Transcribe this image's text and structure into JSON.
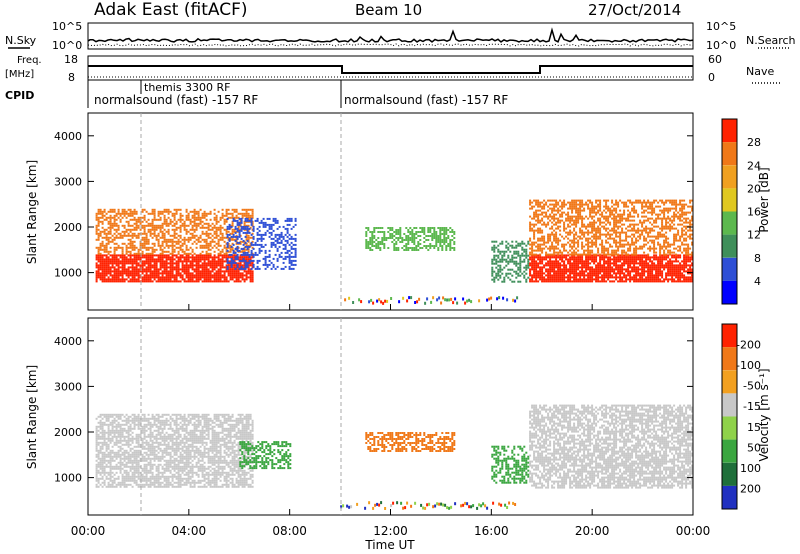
{
  "header": {
    "radar": "Adak East (fitACF)",
    "beam": "Beam 10",
    "date": "27/Oct/2014"
  },
  "side_labels": {
    "nsky": "N.Sky",
    "nsearch": "N.Search",
    "freq": "Freq.",
    "freq_unit": "[MHz]",
    "nave": "Nave",
    "cpid": "CPID"
  },
  "noise_axis": {
    "top": "10^5",
    "bottom": "10^0",
    "right_top": "10^5",
    "right_bottom": "10^0"
  },
  "freq_axis": {
    "top": "18",
    "bottom": "8",
    "right_top": "60",
    "right_bottom": "0"
  },
  "cpid_segments": [
    {
      "label": "normalsound (fast) -157 RF",
      "start_hour": 0,
      "end_hour": 10
    },
    {
      "label": "themis 3300 RF",
      "start_hour": 2,
      "end_hour": 2
    },
    {
      "label": "normalsound (fast) -157 RF",
      "start_hour": 10,
      "end_hour": 24
    }
  ],
  "chart_data": [
    {
      "type": "heatmap",
      "name": "power",
      "ylabel": "Slant Range [km]",
      "xlabel": "Time UT",
      "xlim_hours": [
        0,
        24
      ],
      "ylim": [
        180,
        4500
      ],
      "yticks": [
        "1000",
        "2000",
        "3000",
        "4000"
      ],
      "xticks": [
        "00:00",
        "04:00",
        "08:00",
        "12:00",
        "16:00",
        "20:00",
        "00:00"
      ],
      "colorbar": {
        "label": "Power [dB]",
        "ticks": [
          "4",
          "8",
          "12",
          "16",
          "20",
          "24",
          "28"
        ],
        "colors": [
          "#0000ff",
          "#2e4fd6",
          "#3f8f5a",
          "#5cb84e",
          "#e0c820",
          "#f0a020",
          "#f07818",
          "#ff2200"
        ]
      },
      "regions": [
        {
          "t0": 0.3,
          "t1": 6.5,
          "r0": 800,
          "r1": 1400,
          "color": "#ff2200",
          "density": 0.85
        },
        {
          "t0": 0.3,
          "t1": 6.5,
          "r0": 1400,
          "r1": 2400,
          "color": "#f07818",
          "density": 0.55
        },
        {
          "t0": 5.5,
          "t1": 8.2,
          "r0": 1100,
          "r1": 2200,
          "color": "#2e4fd6",
          "density": 0.4
        },
        {
          "t0": 11.0,
          "t1": 14.5,
          "r0": 1500,
          "r1": 2000,
          "color": "#5cb84e",
          "density": 0.55
        },
        {
          "t0": 16.0,
          "t1": 17.5,
          "r0": 800,
          "r1": 1700,
          "color": "#3f8f5a",
          "density": 0.5
        },
        {
          "t0": 17.5,
          "t1": 24.0,
          "r0": 800,
          "r1": 1400,
          "color": "#ff2200",
          "density": 0.85
        },
        {
          "t0": 17.5,
          "t1": 24.0,
          "r0": 1400,
          "r1": 2600,
          "color": "#f07818",
          "density": 0.55
        }
      ]
    },
    {
      "type": "heatmap",
      "name": "velocity",
      "ylabel": "Slant Range [km]",
      "xlabel": "Time UT",
      "xlim_hours": [
        0,
        24
      ],
      "ylim": [
        180,
        4500
      ],
      "yticks": [
        "1000",
        "2000",
        "3000",
        "4000"
      ],
      "xticks": [
        "00:00",
        "04:00",
        "08:00",
        "12:00",
        "16:00",
        "20:00",
        "00:00"
      ],
      "colorbar": {
        "label": "Velocity [m s⁻¹]",
        "ticks": [
          "200",
          "100",
          "50",
          "15",
          "-15",
          "-50",
          "-100",
          "-200"
        ],
        "colors": [
          "#2030c0",
          "#1f6f3a",
          "#3aa640",
          "#8fd24a",
          "#c8c8c8",
          "#f2a020",
          "#f07818",
          "#ff2200"
        ]
      },
      "regions": [
        {
          "t0": 0.3,
          "t1": 6.5,
          "r0": 800,
          "r1": 2400,
          "color": "#c8c8c8",
          "density": 0.7
        },
        {
          "t0": 6.0,
          "t1": 8.0,
          "r0": 1200,
          "r1": 1800,
          "color": "#3aa640",
          "density": 0.55
        },
        {
          "t0": 11.0,
          "t1": 14.5,
          "r0": 1600,
          "r1": 2000,
          "color": "#f07818",
          "density": 0.55
        },
        {
          "t0": 16.0,
          "t1": 17.5,
          "r0": 900,
          "r1": 1700,
          "color": "#3aa640",
          "density": 0.5
        },
        {
          "t0": 17.5,
          "t1": 24.0,
          "r0": 800,
          "r1": 2600,
          "color": "#c8c8c8",
          "density": 0.7
        }
      ]
    }
  ]
}
